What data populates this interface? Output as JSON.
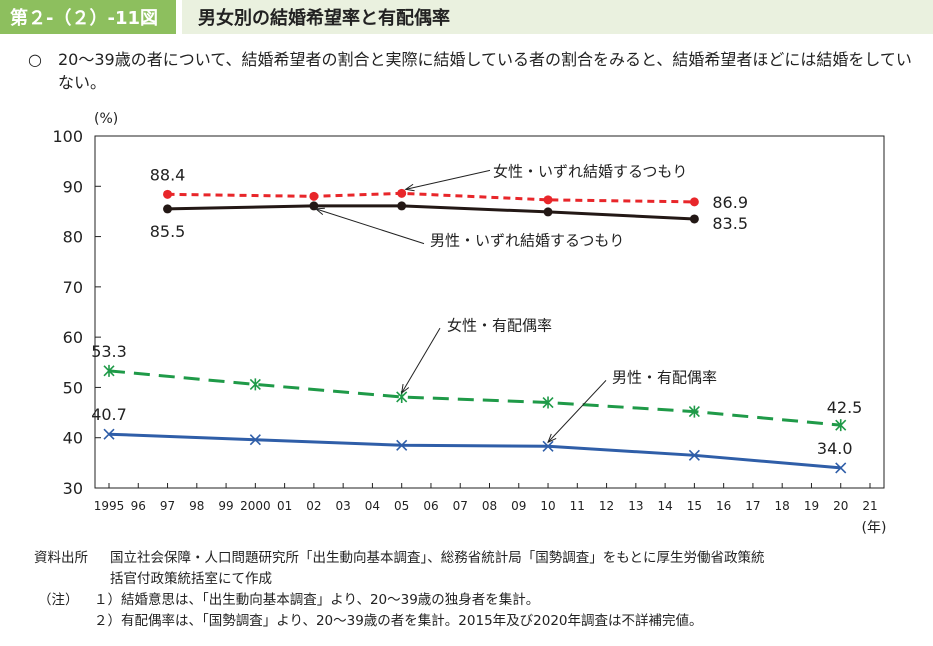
{
  "header": {
    "figure_number": "第２-（２）-11図",
    "title": "男女別の結婚希望率と有配偶率"
  },
  "summary": {
    "bullet": "○",
    "text": "20～39歳の者について、結婚希望者の割合と実際に結婚している者の割合をみると、結婚希望者ほどには結婚をしていない。"
  },
  "chart_data": {
    "type": "line",
    "ylabel": "(%)",
    "xlabel": "(年)",
    "ylim": [
      30,
      100
    ],
    "yticks": [
      "30",
      "40",
      "50",
      "60",
      "70",
      "80",
      "90",
      "100"
    ],
    "x_years": [
      1995,
      1996,
      1997,
      1998,
      1999,
      2000,
      2001,
      2002,
      2003,
      2004,
      2005,
      2006,
      2007,
      2008,
      2009,
      2010,
      2011,
      2012,
      2013,
      2014,
      2015,
      2016,
      2017,
      2018,
      2019,
      2020,
      2021
    ],
    "x_tick_labels": [
      "1995",
      "96",
      "97",
      "98",
      "99",
      "2000",
      "01",
      "02",
      "03",
      "04",
      "05",
      "06",
      "07",
      "08",
      "09",
      "10",
      "11",
      "12",
      "13",
      "14",
      "15",
      "16",
      "17",
      "18",
      "19",
      "20",
      "21"
    ],
    "grid": false,
    "series": [
      {
        "name": "女性・いずれ結婚するつもり",
        "color": "#e8262a",
        "style": "short-dash",
        "marker": "dot",
        "x": [
          1997,
          2002,
          2005,
          2010,
          2015
        ],
        "y": [
          88.4,
          88.0,
          88.6,
          87.3,
          86.9
        ],
        "labels": {
          "start": "88.4",
          "end": "86.9"
        }
      },
      {
        "name": "男性・いずれ結婚するつもり",
        "color": "#231815",
        "style": "solid",
        "marker": "dot",
        "x": [
          1997,
          2002,
          2005,
          2010,
          2015
        ],
        "y": [
          85.5,
          86.1,
          86.1,
          84.9,
          83.5
        ],
        "labels": {
          "start": "85.5",
          "end": "83.5"
        }
      },
      {
        "name": "女性・有配偶率",
        "color": "#1f9a48",
        "style": "long-dash",
        "marker": "asterisk",
        "x": [
          1995,
          2000,
          2005,
          2010,
          2015,
          2020
        ],
        "y": [
          53.3,
          50.6,
          48.1,
          47.0,
          45.2,
          42.5
        ],
        "labels": {
          "start": "53.3",
          "end": "42.5"
        }
      },
      {
        "name": "男性・有配偶率",
        "color": "#2f5ea8",
        "style": "solid",
        "marker": "cross",
        "x": [
          1995,
          2000,
          2005,
          2010,
          2015,
          2020
        ],
        "y": [
          40.7,
          39.6,
          38.5,
          38.3,
          36.5,
          34.0
        ],
        "labels": {
          "start": "40.7",
          "end": "34.0"
        }
      }
    ]
  },
  "notes": {
    "source_label": "資料出所",
    "source_text": "国立社会保障・人口問題研究所「出生動向基本調査」、総務省統計局「国勢調査」をもとに厚生労働省政策統",
    "source_text2": "括官付政策統括室にて作成",
    "note_label": "（注）",
    "note1": "１）結婚意思は、「出生動向基本調査」より、20～39歳の独身者を集計。",
    "note2": "２）有配偶率は、「国勢調査」より、20～39歳の者を集計。2015年及び2020年調査は不詳補完値。"
  }
}
